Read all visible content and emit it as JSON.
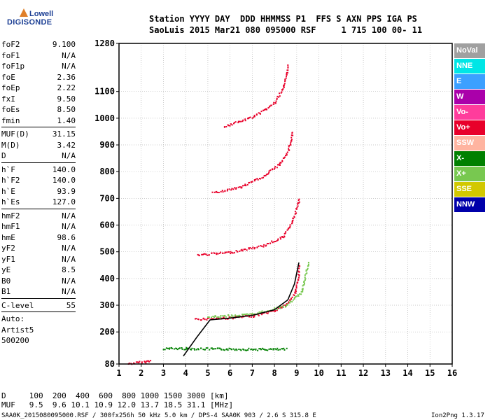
{
  "logo": {
    "brand": "Lowell",
    "name": "DIGISONDE"
  },
  "header": {
    "row1": "Station YYYY DAY  DDD HHMMSS P1  FFS S AXN PPS IGA PS",
    "row2": "SaoLuis 2015 Mar21 080 095000 RSF     1 715 100 00- 11"
  },
  "params": {
    "g1": [
      {
        "k": "foF2",
        "v": "9.100"
      },
      {
        "k": "foF1",
        "v": "N/A"
      },
      {
        "k": "foF1p",
        "v": "N/A"
      },
      {
        "k": "foE",
        "v": "2.36"
      },
      {
        "k": "foEp",
        "v": "2.22"
      },
      {
        "k": "fxI",
        "v": "9.50"
      },
      {
        "k": "foEs",
        "v": "8.50"
      },
      {
        "k": "fmin",
        "v": "1.40"
      }
    ],
    "g2": [
      {
        "k": "MUF(D)",
        "v": "31.15"
      },
      {
        "k": "M(D)",
        "v": "3.42"
      },
      {
        "k": "D",
        "v": "N/A"
      }
    ],
    "g3": [
      {
        "k": "h`F",
        "v": "140.0"
      },
      {
        "k": "h`F2",
        "v": "140.0"
      },
      {
        "k": "h`E",
        "v": "93.9"
      },
      {
        "k": "h`Es",
        "v": "127.0"
      }
    ],
    "g4": [
      {
        "k": "hmF2",
        "v": "N/A"
      },
      {
        "k": "hmF1",
        "v": "N/A"
      },
      {
        "k": "hmE",
        "v": "98.6"
      },
      {
        "k": "yF2",
        "v": "N/A"
      },
      {
        "k": "yF1",
        "v": "N/A"
      },
      {
        "k": "yE",
        "v": "8.5"
      },
      {
        "k": "B0",
        "v": "N/A"
      },
      {
        "k": "B1",
        "v": "N/A"
      }
    ],
    "g5": [
      {
        "k": "C-level",
        "v": "55"
      }
    ],
    "auto": {
      "label": "Auto:",
      "name": "Artist5",
      "ver": "500200"
    }
  },
  "legend": [
    {
      "label": "NoVal",
      "color": "#a0a0a0"
    },
    {
      "label": "NNE",
      "color": "#00e6e6"
    },
    {
      "label": "E",
      "color": "#3ca0ff"
    },
    {
      "label": "W",
      "color": "#aa00aa"
    },
    {
      "label": "Vo-",
      "color": "#ff3c9c"
    },
    {
      "label": "Vo+",
      "color": "#e8002a"
    },
    {
      "label": "SSW",
      "color": "#ffb4a0"
    },
    {
      "label": "X-",
      "color": "#008000"
    },
    {
      "label": "X+",
      "color": "#78c850"
    },
    {
      "label": "SSE",
      "color": "#d2c800"
    },
    {
      "label": "NNW",
      "color": "#0000aa"
    }
  ],
  "footer": {
    "row1": "D     100  200  400  600  800 1000 1500 3000 [km]",
    "row2": "MUF   9.5  9.6 10.1 10.9 12.0 13.7 18.5 31.1 [MHz]",
    "caption": "SAA0K_2015080095000.RSF / 300fx256h 50 kHz 5.0 km / DPS-4 SAA0K 903 / 2.6 S 315.8 E",
    "version": "Ion2Png 1.3.17"
  },
  "chart_data": {
    "type": "scatter",
    "xlim": [
      1,
      16
    ],
    "ylim": [
      80,
      1280
    ],
    "x_ticks": [
      1,
      2,
      3,
      4,
      5,
      6,
      7,
      8,
      9,
      10,
      11,
      12,
      13,
      14,
      15,
      16
    ],
    "y_ticks": [
      80,
      200,
      300,
      400,
      500,
      600,
      700,
      800,
      900,
      1000,
      1100,
      1280
    ],
    "grid": true,
    "traces": [
      {
        "name": "E layer",
        "color": "#e8002a",
        "points": [
          [
            1.4,
            83
          ],
          [
            1.8,
            87
          ],
          [
            2.2,
            91
          ],
          [
            2.4,
            94
          ]
        ]
      },
      {
        "name": "Es",
        "color": "#008000",
        "points": [
          [
            3.0,
            140
          ],
          [
            4.0,
            140
          ],
          [
            5.5,
            138
          ],
          [
            7.5,
            137
          ],
          [
            8.5,
            137
          ]
        ]
      },
      {
        "name": "F2 O-trace",
        "color": "#e8002a",
        "points": [
          [
            4.4,
            250
          ],
          [
            6.0,
            255
          ],
          [
            7.0,
            262
          ],
          [
            8.0,
            282
          ],
          [
            8.6,
            310
          ],
          [
            8.9,
            350
          ],
          [
            9.05,
            400
          ],
          [
            9.1,
            450
          ]
        ]
      },
      {
        "name": "F2 X-trace",
        "color": "#78c850",
        "points": [
          [
            5.0,
            258
          ],
          [
            7.0,
            268
          ],
          [
            8.5,
            300
          ],
          [
            9.2,
            350
          ],
          [
            9.5,
            460
          ]
        ]
      },
      {
        "name": "F2 2nd hop",
        "color": "#e8002a",
        "points": [
          [
            4.5,
            490
          ],
          [
            6.0,
            500
          ],
          [
            7.5,
            525
          ],
          [
            8.4,
            560
          ],
          [
            8.8,
            620
          ],
          [
            9.1,
            700
          ]
        ]
      },
      {
        "name": "F2 3rd hop",
        "color": "#e8002a",
        "points": [
          [
            5.2,
            722
          ],
          [
            6.5,
            745
          ],
          [
            7.5,
            785
          ],
          [
            8.2,
            830
          ],
          [
            8.6,
            880
          ],
          [
            8.8,
            950
          ]
        ]
      },
      {
        "name": "F2 4th hop",
        "color": "#e8002a",
        "points": [
          [
            5.7,
            970
          ],
          [
            6.8,
            1000
          ],
          [
            7.5,
            1030
          ],
          [
            8.0,
            1060
          ],
          [
            8.4,
            1120
          ],
          [
            8.6,
            1200
          ]
        ]
      },
      {
        "name": "Auto profile",
        "color": "#000000",
        "points": [
          [
            3.9,
            110
          ],
          [
            4.5,
            180
          ],
          [
            5.1,
            245
          ],
          [
            6.0,
            252
          ],
          [
            7.0,
            262
          ],
          [
            8.0,
            283
          ],
          [
            8.6,
            320
          ],
          [
            8.9,
            380
          ],
          [
            9.1,
            460
          ]
        ]
      }
    ]
  }
}
